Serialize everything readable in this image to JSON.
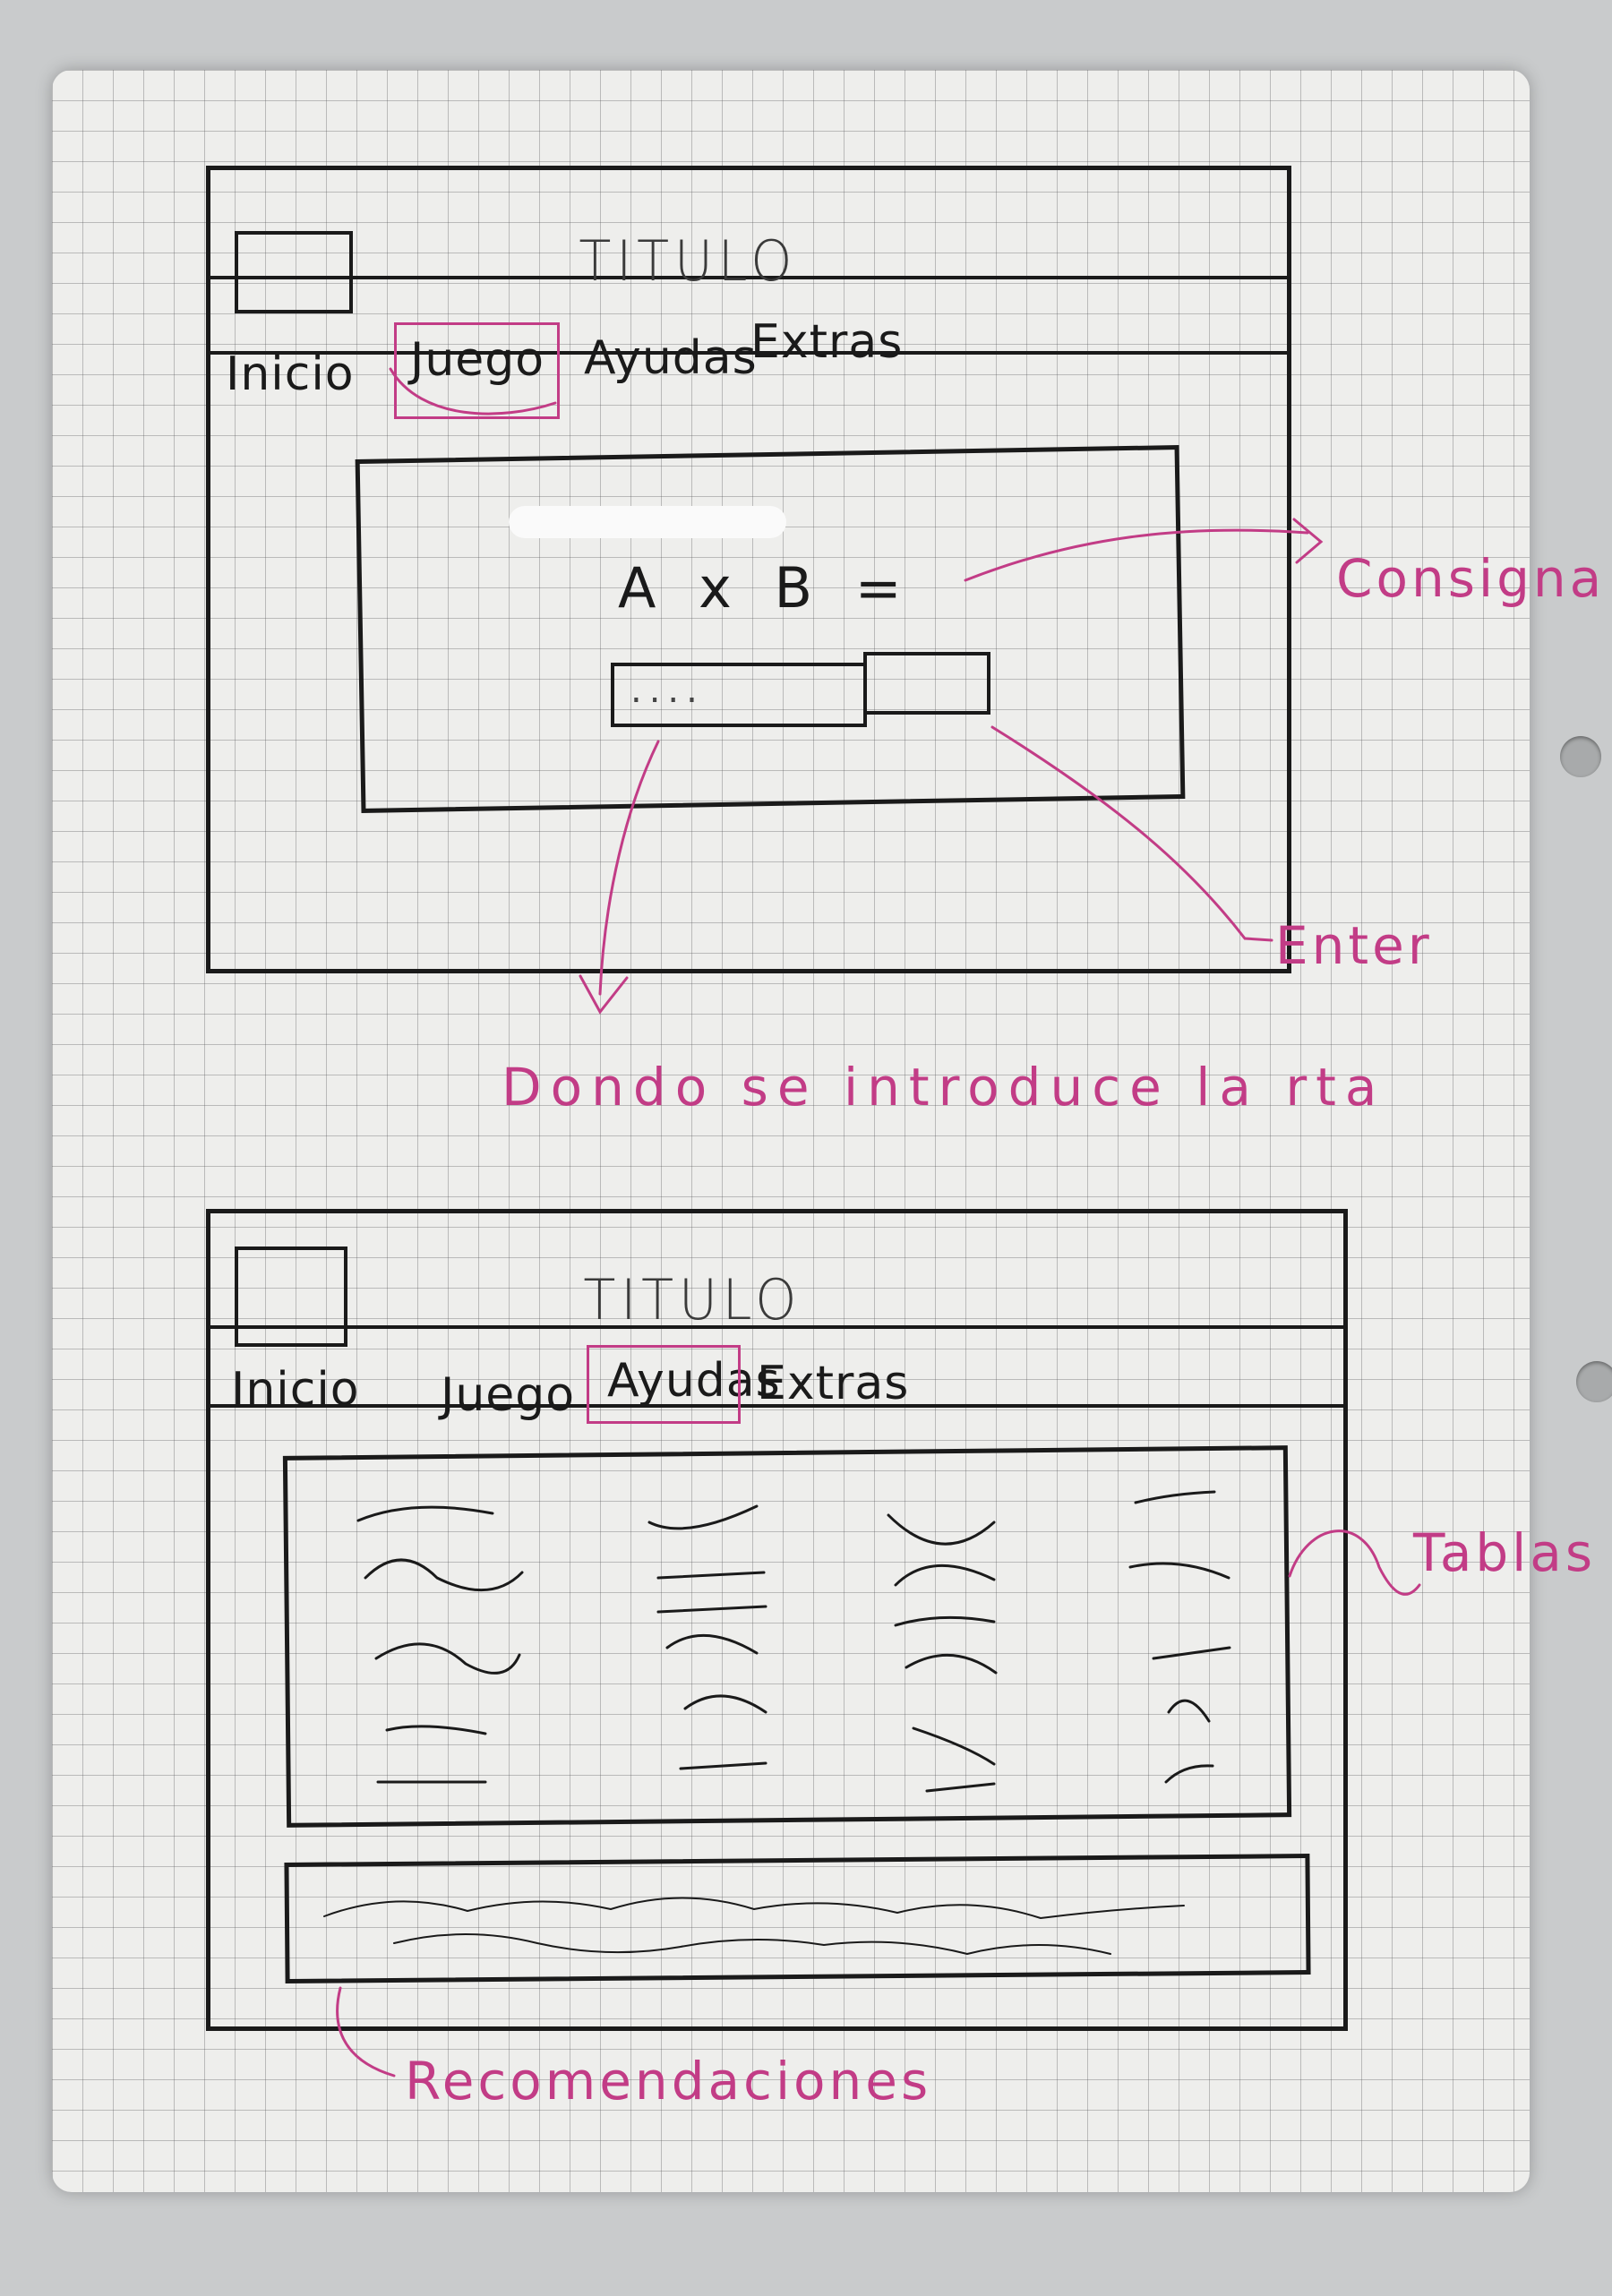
{
  "wireframe_game": {
    "title": "TITULO",
    "nav": [
      "Inicio",
      "Juego",
      "Ayudas",
      "Extras"
    ],
    "active": "Juego",
    "question": "A x B =",
    "input_placeholder": "....",
    "annotations": {
      "prompt": "Consigna",
      "enter": "Enter",
      "answer_input": "Dondo se introduce la rta"
    }
  },
  "wireframe_help": {
    "title": "TITULO",
    "nav": [
      "Inicio",
      "Juego",
      "Ayudas",
      "Extras"
    ],
    "active": "Ayudas",
    "annotations": {
      "tables": "Tablas",
      "recommendations": "Recomendaciones"
    }
  },
  "colors": {
    "ink": "#1a1a1a",
    "annotation": "#c23c86",
    "paper": "#eeeeec"
  }
}
